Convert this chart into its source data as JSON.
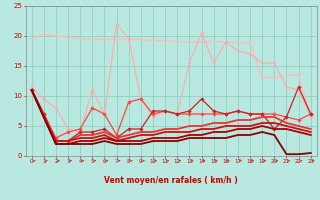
{
  "xlabel": "Vent moyen/en rafales ( km/h )",
  "xlim": [
    -0.5,
    23.5
  ],
  "ylim": [
    0,
    25
  ],
  "yticks": [
    0,
    5,
    10,
    15,
    20,
    25
  ],
  "xticks": [
    0,
    1,
    2,
    3,
    4,
    5,
    6,
    7,
    8,
    9,
    10,
    11,
    12,
    13,
    14,
    15,
    16,
    17,
    18,
    19,
    20,
    21,
    22,
    23
  ],
  "bg_color": "#b8e8e0",
  "grid_color": "#88ccbb",
  "series": [
    {
      "x": [
        0,
        1,
        2,
        3,
        4,
        5,
        6,
        7,
        8,
        9,
        10,
        11,
        12,
        13,
        14,
        15,
        16,
        17,
        18,
        19,
        20,
        21,
        22,
        23
      ],
      "y": [
        19.5,
        20.3,
        20.0,
        19.8,
        19.6,
        19.5,
        19.4,
        19.5,
        19.5,
        19.4,
        19.3,
        19.2,
        19.1,
        19.0,
        19.0,
        19.1,
        19.0,
        18.9,
        18.8,
        13.0,
        13.2,
        13.4,
        13.5,
        6.5
      ],
      "color": "#ffbbbb",
      "lw": 1.0,
      "marker": null
    },
    {
      "x": [
        0,
        1,
        2,
        3,
        4,
        5,
        6,
        7,
        8,
        9,
        10,
        11,
        12,
        13,
        14,
        15,
        16,
        17,
        18,
        19,
        20,
        21,
        22,
        23
      ],
      "y": [
        11.5,
        9.5,
        8.0,
        4.5,
        4.0,
        11.0,
        7.0,
        22.0,
        19.5,
        9.5,
        6.5,
        7.5,
        7.0,
        15.5,
        20.5,
        15.5,
        19.0,
        17.5,
        17.0,
        15.5,
        15.5,
        11.5,
        11.0,
        6.5
      ],
      "color": "#ffaaaa",
      "lw": 0.8,
      "marker": "D",
      "ms": 1.5
    },
    {
      "x": [
        0,
        1,
        2,
        3,
        4,
        5,
        6,
        7,
        8,
        9,
        10,
        11,
        12,
        13,
        14,
        15,
        16,
        17,
        18,
        19,
        20,
        21,
        22,
        23
      ],
      "y": [
        11.0,
        7.0,
        3.0,
        4.0,
        4.5,
        8.0,
        7.0,
        3.5,
        9.0,
        9.5,
        7.0,
        7.5,
        7.0,
        7.0,
        7.0,
        7.0,
        7.0,
        7.5,
        7.0,
        7.0,
        7.0,
        6.5,
        6.0,
        7.0
      ],
      "color": "#ff4444",
      "lw": 0.9,
      "marker": "D",
      "ms": 1.8
    },
    {
      "x": [
        0,
        1,
        2,
        3,
        4,
        5,
        6,
        7,
        8,
        9,
        10,
        11,
        12,
        13,
        14,
        15,
        16,
        17,
        18,
        19,
        20,
        21,
        22,
        23
      ],
      "y": [
        11.0,
        7.0,
        2.5,
        2.5,
        4.0,
        4.0,
        4.5,
        3.0,
        4.5,
        4.5,
        7.5,
        7.5,
        7.0,
        7.5,
        9.5,
        7.5,
        7.0,
        7.5,
        7.0,
        7.0,
        4.5,
        6.5,
        11.5,
        7.0
      ],
      "color": "#cc2222",
      "lw": 0.9,
      "marker": "D",
      "ms": 1.8
    },
    {
      "x": [
        0,
        1,
        2,
        3,
        4,
        5,
        6,
        7,
        8,
        9,
        10,
        11,
        12,
        13,
        14,
        15,
        16,
        17,
        18,
        19,
        20,
        21,
        22,
        23
      ],
      "y": [
        11.0,
        7.0,
        2.5,
        2.5,
        3.5,
        3.5,
        4.0,
        3.0,
        3.5,
        4.0,
        4.0,
        4.5,
        4.5,
        5.0,
        5.0,
        5.5,
        5.5,
        6.0,
        6.0,
        6.5,
        6.5,
        5.5,
        5.0,
        4.5
      ],
      "color": "#ee3333",
      "lw": 1.3,
      "marker": null
    },
    {
      "x": [
        0,
        1,
        2,
        3,
        4,
        5,
        6,
        7,
        8,
        9,
        10,
        11,
        12,
        13,
        14,
        15,
        16,
        17,
        18,
        19,
        20,
        21,
        22,
        23
      ],
      "y": [
        11.0,
        6.5,
        2.5,
        2.5,
        3.0,
        3.0,
        3.5,
        2.5,
        3.0,
        3.5,
        3.5,
        4.0,
        4.0,
        4.0,
        4.5,
        4.5,
        5.0,
        5.0,
        5.0,
        5.5,
        5.5,
        5.0,
        4.5,
        4.0
      ],
      "color": "#cc1111",
      "lw": 1.3,
      "marker": null
    },
    {
      "x": [
        0,
        1,
        2,
        3,
        4,
        5,
        6,
        7,
        8,
        9,
        10,
        11,
        12,
        13,
        14,
        15,
        16,
        17,
        18,
        19,
        20,
        21,
        22,
        23
      ],
      "y": [
        11.0,
        6.5,
        2.0,
        2.0,
        2.5,
        2.5,
        3.0,
        2.5,
        2.5,
        2.5,
        3.0,
        3.0,
        3.0,
        3.5,
        3.5,
        4.0,
        4.0,
        4.5,
        4.5,
        5.0,
        4.5,
        4.5,
        4.0,
        3.5
      ],
      "color": "#aa0000",
      "lw": 1.3,
      "marker": null
    },
    {
      "x": [
        0,
        1,
        2,
        3,
        4,
        5,
        6,
        7,
        8,
        9,
        10,
        11,
        12,
        13,
        14,
        15,
        16,
        17,
        18,
        19,
        20,
        21,
        22,
        23
      ],
      "y": [
        11.0,
        6.5,
        2.0,
        2.0,
        2.0,
        2.0,
        2.5,
        2.0,
        2.0,
        2.0,
        2.5,
        2.5,
        2.5,
        3.0,
        3.0,
        3.0,
        3.0,
        3.5,
        3.5,
        4.0,
        3.5,
        0.3,
        0.3,
        0.5
      ],
      "color": "#880000",
      "lw": 1.3,
      "marker": null
    }
  ],
  "arrow_color": "#cc3333"
}
